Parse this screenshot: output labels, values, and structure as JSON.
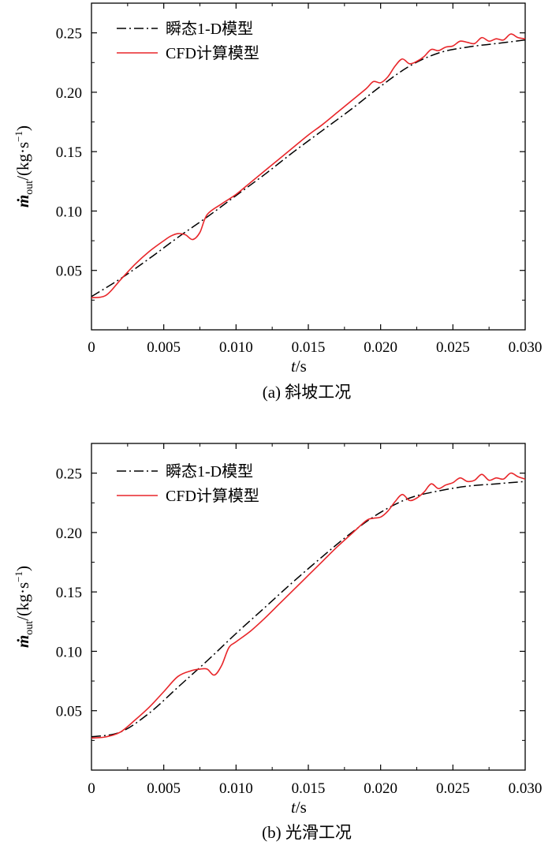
{
  "chart_data": [
    {
      "type": "line",
      "caption": "(a) 斜坡工况",
      "xlabel_var": "t",
      "xlabel_unit": "/s",
      "ylabel_var": "ṁ",
      "ylabel_sub": "out",
      "ylabel_unit": "/(kg·s",
      "ylabel_exp": "−1",
      "ylabel_close": ")",
      "xlim": [
        0,
        0.03
      ],
      "ylim": [
        0.0,
        0.275
      ],
      "x_ticks": [
        "0",
        "0.005",
        "0.010",
        "0.015",
        "0.020",
        "0.025",
        "0.030"
      ],
      "y_ticks": [
        "0.05",
        "0.10",
        "0.15",
        "0.20",
        "0.25"
      ],
      "legend_position": "top-left",
      "series": [
        {
          "name": "瞬态1-D模型",
          "style": "dash-dot",
          "color": "#000000",
          "x": [
            0,
            0.002,
            0.004,
            0.006,
            0.008,
            0.01,
            0.012,
            0.014,
            0.016,
            0.018,
            0.02,
            0.022,
            0.024,
            0.026,
            0.028,
            0.03
          ],
          "y": [
            0.028,
            0.043,
            0.06,
            0.078,
            0.095,
            0.113,
            0.131,
            0.15,
            0.168,
            0.186,
            0.205,
            0.222,
            0.233,
            0.238,
            0.241,
            0.244
          ]
        },
        {
          "name": "CFD计算模型",
          "style": "solid",
          "color": "#e8262a",
          "x": [
            0,
            0.001,
            0.002,
            0.003,
            0.004,
            0.005,
            0.0055,
            0.006,
            0.0065,
            0.007,
            0.0075,
            0.008,
            0.009,
            0.01,
            0.011,
            0.012,
            0.013,
            0.014,
            0.015,
            0.016,
            0.017,
            0.018,
            0.019,
            0.0195,
            0.02,
            0.0205,
            0.021,
            0.0215,
            0.022,
            0.0225,
            0.023,
            0.0235,
            0.024,
            0.0245,
            0.025,
            0.0255,
            0.026,
            0.0265,
            0.027,
            0.0275,
            0.028,
            0.0285,
            0.029,
            0.0295,
            0.03
          ],
          "y": [
            0.027,
            0.029,
            0.042,
            0.055,
            0.066,
            0.075,
            0.079,
            0.081,
            0.08,
            0.076,
            0.082,
            0.097,
            0.106,
            0.114,
            0.124,
            0.134,
            0.144,
            0.154,
            0.164,
            0.173,
            0.183,
            0.193,
            0.203,
            0.209,
            0.208,
            0.213,
            0.222,
            0.228,
            0.224,
            0.226,
            0.23,
            0.236,
            0.235,
            0.238,
            0.239,
            0.243,
            0.242,
            0.241,
            0.246,
            0.243,
            0.245,
            0.244,
            0.249,
            0.246,
            0.245
          ]
        }
      ]
    },
    {
      "type": "line",
      "caption": "(b) 光滑工况",
      "xlabel_var": "t",
      "xlabel_unit": "/s",
      "ylabel_var": "ṁ",
      "ylabel_sub": "out",
      "ylabel_unit": "/(kg·s",
      "ylabel_exp": "−1",
      "ylabel_close": ")",
      "xlim": [
        0,
        0.03
      ],
      "ylim": [
        0.0,
        0.275
      ],
      "x_ticks": [
        "0",
        "0.005",
        "0.010",
        "0.015",
        "0.020",
        "0.025",
        "0.030"
      ],
      "y_ticks": [
        "0.05",
        "0.10",
        "0.15",
        "0.20",
        "0.25"
      ],
      "legend_position": "top-left",
      "series": [
        {
          "name": "瞬态1-D模型",
          "style": "dash-dot",
          "color": "#000000",
          "x": [
            0,
            0.002,
            0.004,
            0.006,
            0.008,
            0.01,
            0.012,
            0.014,
            0.016,
            0.018,
            0.02,
            0.022,
            0.024,
            0.026,
            0.028,
            0.03
          ],
          "y": [
            0.028,
            0.032,
            0.048,
            0.07,
            0.092,
            0.115,
            0.137,
            0.159,
            0.18,
            0.2,
            0.217,
            0.229,
            0.235,
            0.239,
            0.241,
            0.243
          ]
        },
        {
          "name": "CFD计算模型",
          "style": "solid",
          "color": "#e8262a",
          "x": [
            0,
            0.001,
            0.002,
            0.003,
            0.004,
            0.005,
            0.006,
            0.007,
            0.0075,
            0.008,
            0.0085,
            0.009,
            0.0095,
            0.01,
            0.011,
            0.012,
            0.013,
            0.014,
            0.015,
            0.016,
            0.017,
            0.018,
            0.019,
            0.0195,
            0.02,
            0.0205,
            0.021,
            0.0215,
            0.022,
            0.0225,
            0.023,
            0.0235,
            0.024,
            0.0245,
            0.025,
            0.0255,
            0.026,
            0.0265,
            0.027,
            0.0275,
            0.028,
            0.0285,
            0.029,
            0.0295,
            0.03
          ],
          "y": [
            0.027,
            0.028,
            0.032,
            0.042,
            0.053,
            0.066,
            0.079,
            0.084,
            0.085,
            0.085,
            0.08,
            0.088,
            0.103,
            0.108,
            0.117,
            0.128,
            0.14,
            0.152,
            0.164,
            0.176,
            0.188,
            0.199,
            0.21,
            0.212,
            0.213,
            0.218,
            0.226,
            0.232,
            0.227,
            0.229,
            0.234,
            0.241,
            0.237,
            0.24,
            0.242,
            0.246,
            0.243,
            0.244,
            0.249,
            0.244,
            0.246,
            0.245,
            0.25,
            0.247,
            0.245
          ]
        }
      ]
    }
  ]
}
